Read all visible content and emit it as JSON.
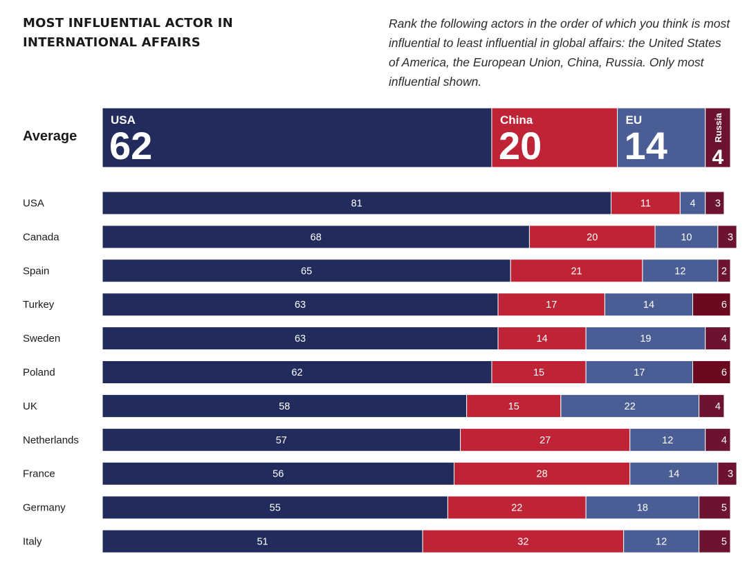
{
  "title_lines": [
    "MOST INFLUENTIAL ACTOR IN",
    "INTERNATIONAL AFFAIRS"
  ],
  "subtitle": "Rank the following actors in the order of which you think is most influential to least influential in global affairs: the United States of America, the European Union, China, Russia. Only most influential shown.",
  "colors": {
    "USA": "#212b5c",
    "China": "#be2435",
    "EU": "#4a5d94",
    "Russia": "#6b1330"
  },
  "chart_data": {
    "type": "bar",
    "orientation": "horizontal",
    "stacked": true,
    "unit": "percent",
    "xlim": [
      0,
      100
    ],
    "average": {
      "label": "Average",
      "segments": [
        {
          "name": "USA",
          "value": 62
        },
        {
          "name": "China",
          "value": 20
        },
        {
          "name": "EU",
          "value": 14
        },
        {
          "name": "Russia",
          "value": 4
        }
      ]
    },
    "series_names": [
      "USA",
      "China",
      "EU",
      "Russia"
    ],
    "categories": [
      "USA",
      "Canada",
      "Spain",
      "Turkey",
      "Sweden",
      "Poland",
      "UK",
      "Netherlands",
      "France",
      "Germany",
      "Italy"
    ],
    "series": [
      {
        "name": "USA",
        "values": [
          81,
          68,
          65,
          63,
          63,
          62,
          58,
          57,
          56,
          55,
          51
        ]
      },
      {
        "name": "China",
        "values": [
          11,
          20,
          21,
          17,
          14,
          15,
          15,
          27,
          28,
          22,
          32
        ]
      },
      {
        "name": "EU",
        "values": [
          4,
          10,
          12,
          14,
          19,
          17,
          22,
          12,
          14,
          18,
          12
        ]
      },
      {
        "name": "Russia",
        "values": [
          3,
          3,
          2,
          6,
          4,
          6,
          4,
          4,
          3,
          5,
          5
        ]
      }
    ]
  }
}
